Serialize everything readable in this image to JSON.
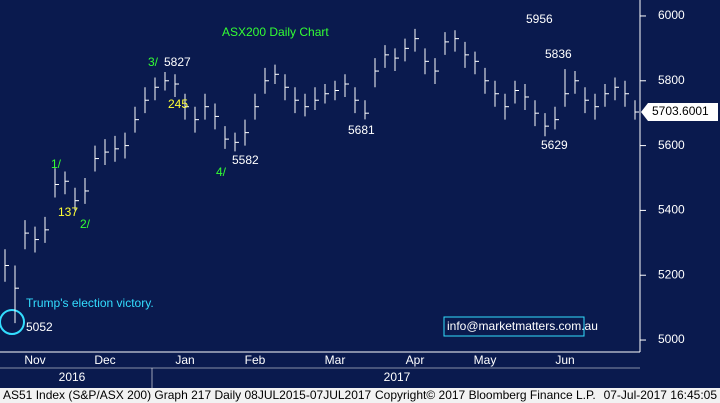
{
  "chart_data": {
    "type": "ohlc",
    "title": "ASX200 Daily Chart",
    "categories": [
      null,
      null,
      null,
      "Nov",
      null,
      null,
      null,
      null,
      null,
      null,
      "Dec",
      null,
      null,
      null,
      null,
      null,
      null,
      null,
      "Jan",
      null,
      null,
      null,
      null,
      null,
      null,
      "Feb",
      null,
      null,
      null,
      null,
      null,
      null,
      null,
      "Mar",
      null,
      null,
      null,
      null,
      null,
      null,
      null,
      "Apr",
      null,
      null,
      null,
      null,
      null,
      null,
      "May",
      null,
      null,
      null,
      null,
      null,
      null,
      null,
      "Jun",
      null,
      null,
      null,
      null,
      null,
      null,
      null
    ],
    "years": [
      "2016",
      "2017"
    ],
    "high": [
      5280,
      5230,
      5370,
      5350,
      5380,
      5530,
      5520,
      5470,
      5500,
      5600,
      5620,
      5630,
      5640,
      5720,
      5780,
      5810,
      5827,
      5820,
      5760,
      5720,
      5760,
      5730,
      5660,
      5640,
      5680,
      5760,
      5840,
      5850,
      5820,
      5780,
      5760,
      5780,
      5790,
      5800,
      5820,
      5780,
      5740,
      5870,
      5910,
      5900,
      5930,
      5960,
      5900,
      5870,
      5950,
      5956,
      5920,
      5890,
      5840,
      5800,
      5760,
      5800,
      5790,
      5740,
      5700,
      5720,
      5836,
      5830,
      5780,
      5760,
      5790,
      5810,
      5800,
      5740
    ],
    "low": [
      5180,
      5052,
      5280,
      5270,
      5300,
      5440,
      5450,
      5400,
      5420,
      5520,
      5540,
      5550,
      5560,
      5640,
      5700,
      5740,
      5770,
      5750,
      5680,
      5640,
      5680,
      5650,
      5590,
      5582,
      5600,
      5680,
      5760,
      5790,
      5740,
      5700,
      5690,
      5710,
      5730,
      5740,
      5750,
      5700,
      5681,
      5780,
      5840,
      5830,
      5860,
      5890,
      5820,
      5790,
      5880,
      5890,
      5840,
      5820,
      5760,
      5720,
      5680,
      5730,
      5710,
      5660,
      5629,
      5650,
      5720,
      5760,
      5700,
      5680,
      5720,
      5740,
      5720,
      5680
    ],
    "close": [
      5230,
      5160,
      5330,
      5310,
      5340,
      5480,
      5490,
      5430,
      5460,
      5560,
      5580,
      5590,
      5600,
      5680,
      5740,
      5780,
      5800,
      5790,
      5720,
      5680,
      5720,
      5690,
      5620,
      5610,
      5640,
      5720,
      5800,
      5820,
      5780,
      5740,
      5720,
      5740,
      5760,
      5770,
      5790,
      5740,
      5700,
      5830,
      5880,
      5870,
      5900,
      5930,
      5860,
      5830,
      5920,
      5930,
      5880,
      5860,
      5800,
      5760,
      5720,
      5770,
      5750,
      5700,
      5660,
      5680,
      5760,
      5800,
      5740,
      5720,
      5760,
      5780,
      5760,
      5703.6001
    ],
    "color": "#ffffff",
    "ylim": [
      4960,
      6040
    ],
    "yticks": [
      5000,
      5200,
      5400,
      5600,
      5800,
      6000
    ],
    "grid": false,
    "annotations": [
      {
        "text": "3/",
        "color": "#33ff33"
      },
      {
        "text": "5827",
        "color": "#ffffff"
      },
      {
        "text": "245",
        "color": "#ffff33"
      },
      {
        "text": "5582",
        "color": "#ffffff"
      },
      {
        "text": "4/",
        "color": "#33ff33"
      },
      {
        "text": "1/",
        "color": "#33ff33"
      },
      {
        "text": "137",
        "color": "#ffff33"
      },
      {
        "text": "2/",
        "color": "#33ff33"
      },
      {
        "text": "5956",
        "color": "#ffffff"
      },
      {
        "text": "5681",
        "color": "#ffffff"
      },
      {
        "text": "5836",
        "color": "#ffffff"
      },
      {
        "text": "5629",
        "color": "#ffffff"
      },
      {
        "text": "Trump's election victory.",
        "color": "#33ddff"
      },
      {
        "text": "5052",
        "color": "#ffffff"
      }
    ],
    "contact": "info@marketmatters.com.au"
  },
  "footer": {
    "left": "AS51 Index (S&P/ASX 200) Graph 217  Daily 08JUL2015-07JUL2017",
    "center": "Copyright© 2017 Bloomberg Finance L.P.",
    "right": "07-Jul-2017 16:45:05"
  }
}
